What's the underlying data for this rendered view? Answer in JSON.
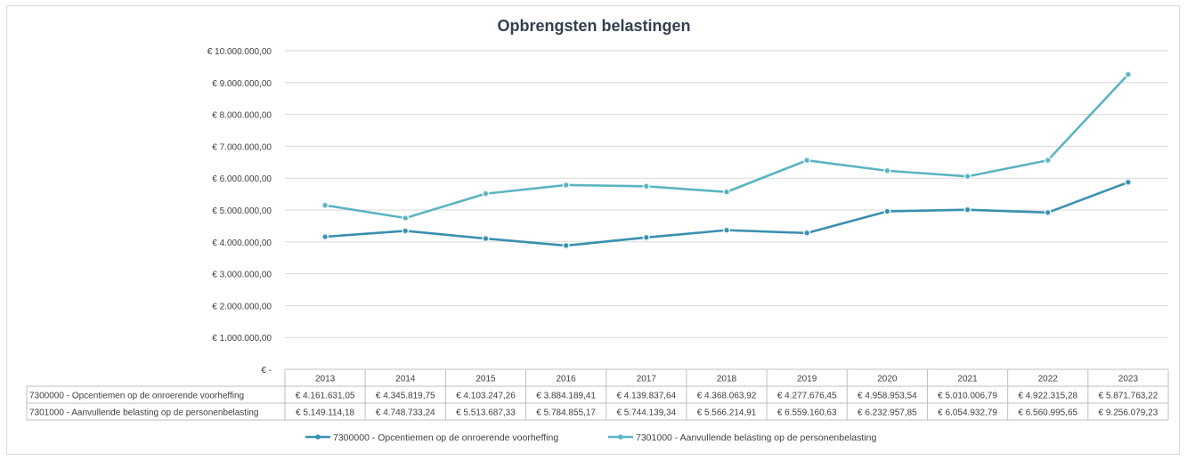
{
  "chart_data": {
    "type": "line",
    "title": "Opbrengsten belastingen",
    "categories": [
      "2013",
      "2014",
      "2015",
      "2016",
      "2017",
      "2018",
      "2019",
      "2020",
      "2021",
      "2022",
      "2023"
    ],
    "ylim": [
      0,
      10000000
    ],
    "yticks": [
      0,
      1000000,
      2000000,
      3000000,
      4000000,
      5000000,
      6000000,
      7000000,
      8000000,
      9000000,
      10000000
    ],
    "ytick_labels": [
      "€ -",
      "€ 1.000.000,00",
      "€ 2.000.000,00",
      "€ 3.000.000,00",
      "€ 4.000.000,00",
      "€ 5.000.000,00",
      "€ 6.000.000,00",
      "€ 7.000.000,00",
      "€ 8.000.000,00",
      "€ 9.000.000,00",
      "€ 10.000.000,00"
    ],
    "grid": true,
    "legend_position": "bottom",
    "series": [
      {
        "name": "7300000 - Opcentiemen op de onroerende voorheffing",
        "color": "#3a8fb0",
        "values": [
          4161631.05,
          4345819.75,
          4103247.26,
          3884189.41,
          4139837.64,
          4368063.92,
          4277676.45,
          4958953.54,
          5010006.79,
          4922315.28,
          5871763.22
        ],
        "labels": [
          "€ 4.161.631,05",
          "€ 4.345.819,75",
          "€ 4.103.247,26",
          "€ 3.884.189,41",
          "€ 4.139.837,64",
          "€ 4.368.063,92",
          "€ 4.277.676,45",
          "€ 4.958.953,54",
          "€ 5.010.006,79",
          "€ 4.922.315,28",
          "€ 5.871.763,22"
        ]
      },
      {
        "name": "7301000 - Aanvullende belasting op de personenbelasting",
        "color": "#5bb4c0",
        "values": [
          5149114.18,
          4748733.24,
          5513687.33,
          5784855.17,
          5744139.34,
          5566214.91,
          6559160.63,
          6232957.85,
          6054932.79,
          6560995.65,
          9256079.23
        ],
        "labels": [
          "€ 5.149.114,18",
          "€ 4.748.733,24",
          "€ 5.513.687,33",
          "€ 5.784.855,17",
          "€ 5.744.139,34",
          "€ 5.566.214,91",
          "€ 6.559.160,63",
          "€ 6.232.957,85",
          "€ 6.054.932,79",
          "€ 6.560.995,65",
          "€ 9.256.079,23"
        ]
      }
    ]
  }
}
